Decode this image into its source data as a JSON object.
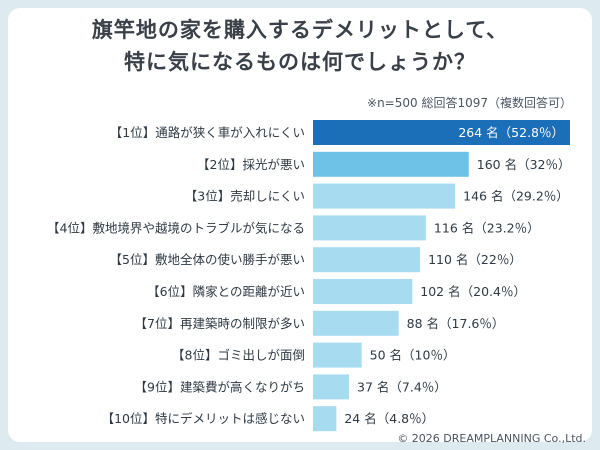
{
  "title_line1": "旗竿地の家を購入するデメリットとして、",
  "title_line2": "特に気になるものは何でしょうか？",
  "note": "※n=500 総回答1097（複数回答可）",
  "copyright": "© 2026 DREAMPLANNING Co.,Ltd.",
  "colors": {
    "background": "#ddebf1",
    "bar_top": "#1b6eb8",
    "bar_second": "#6ec2e8",
    "bar_light": "#a7dbf0"
  },
  "chart_data": {
    "type": "bar",
    "orientation": "horizontal",
    "categories": [
      "【1位】通路が狭く車が入れにくい",
      "【2位】採光が悪い",
      "【3位】売却しにくい",
      "【4位】敷地境界や越境のトラブルが気になる",
      "【5位】敷地全体の使い勝手が悪い",
      "【6位】隣家との距離が近い",
      "【7位】再建築時の制限が多い",
      "【8位】ゴミ出しが面倒",
      "【9位】建築費が高くなりがち",
      "【10位】特にデメリットは感じない"
    ],
    "values": [
      264,
      160,
      146,
      116,
      110,
      102,
      88,
      50,
      37,
      24
    ],
    "value_labels": [
      "264 名（52.8％）",
      "160 名（32％）",
      "146 名（29.2％）",
      "116 名（23.2％）",
      "110 名（22％）",
      "102 名（20.4％）",
      "88 名（17.6％）",
      "50 名（10％）",
      "37 名（7.4％）",
      "24 名（4.8％）"
    ],
    "xlim": [
      0,
      264
    ],
    "grid": false,
    "title": "",
    "xlabel": "",
    "ylabel": ""
  }
}
